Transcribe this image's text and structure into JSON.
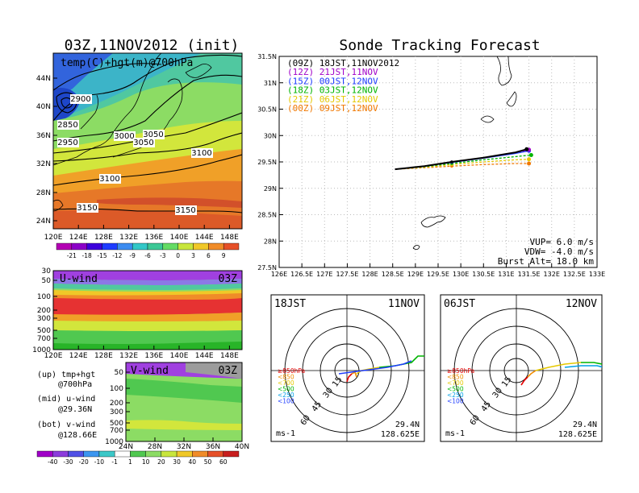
{
  "header": {
    "left_title": "03Z,11NOV2012 (init)",
    "right_title": "Sonde Tracking Forecast"
  },
  "map": {
    "label": "temp(C)+hgt(m)@700hPa",
    "contours": [
      "2850",
      "2900",
      "2950",
      "3000",
      "3050",
      "3050",
      "3100",
      "3100",
      "3150",
      "3150"
    ],
    "y_ticks": [
      "44N",
      "40N",
      "36N",
      "32N",
      "28N",
      "24N"
    ],
    "x_ticks": [
      "120E",
      "124E",
      "128E",
      "132E",
      "136E",
      "140E",
      "144E",
      "148E"
    ],
    "colorbar": [
      "-21",
      "-18",
      "-15",
      "-12",
      "-9",
      "-6",
      "-3",
      "0",
      "3",
      "6",
      "9"
    ]
  },
  "uwind": {
    "label": "U-wind",
    "time": "03Z",
    "y_ticks": [
      "30",
      "50",
      "100",
      "200",
      "300",
      "500",
      "700",
      "1000"
    ],
    "x_ticks": [
      "120E",
      "124E",
      "128E",
      "132E",
      "136E",
      "140E",
      "144E",
      "148E"
    ]
  },
  "vwind": {
    "label": "V-wind",
    "time": "03Z",
    "y_ticks": [
      "50",
      "100",
      "200",
      "300",
      "500",
      "700",
      "1000"
    ],
    "x_ticks": [
      "24N",
      "28N",
      "32N",
      "36N",
      "40N"
    ],
    "colorbar": [
      "-40",
      "-30",
      "-20",
      "-10",
      "-1",
      "1",
      "10",
      "20",
      "30",
      "40",
      "50",
      "60"
    ]
  },
  "notes": {
    "up_1": "(up) tmp+hgt",
    "up_2": "@700hPa",
    "mid_1": "(mid) u-wind",
    "mid_2": "@29.36N",
    "bot_1": "(bot) v-wind",
    "bot_2": "@128.66E"
  },
  "track": {
    "y_ticks": [
      "31.5N",
      "31N",
      "30.5N",
      "30N",
      "29.5N",
      "29N",
      "28.5N",
      "28N",
      "27.5N"
    ],
    "x_ticks": [
      "126E",
      "126.5E",
      "127E",
      "127.5E",
      "128E",
      "128.5E",
      "129E",
      "129.5E",
      "130E",
      "130.5E",
      "131E",
      "131.5E",
      "132E",
      "132.5E",
      "133E"
    ],
    "legend": [
      {
        "label": "(09Z)  18JST,11NOV2012",
        "color": "#000000"
      },
      {
        "label": "(12Z)  21JST,11NOV",
        "color": "#a000c8"
      },
      {
        "label": "(15Z)  00JST,12NOV",
        "color": "#1e3cff"
      },
      {
        "label": "(18Z)  03JST,12NOV",
        "color": "#00b400"
      },
      {
        "label": "(21Z)  06JST,12NOV",
        "color": "#e6c800"
      },
      {
        "label": "(00Z)  09JST,12NOV",
        "color": "#f07800"
      }
    ],
    "params": {
      "vup": "VUP=  6.0  m/s",
      "vdw": "VDW= -4.0  m/s",
      "burst": "Burst Alt=  18.0  km"
    }
  },
  "hodo_left": {
    "time": "18JST",
    "date": "11NOV",
    "rings": [
      "15",
      "30",
      "45",
      "60"
    ],
    "levels": [
      "≥850hPa",
      "<850",
      "<700",
      "<500",
      "<250",
      "<100"
    ],
    "unit": "ms-1",
    "lat": "29.4N",
    "lon": "128.625E"
  },
  "hodo_right": {
    "time": "06JST",
    "date": "12NOV",
    "rings": [
      "15",
      "30",
      "45",
      "60"
    ],
    "levels": [
      "≥850hPa",
      "<850",
      "<700",
      "<500",
      "<250",
      "<100"
    ],
    "unit": "ms-1",
    "lat": "29.4N",
    "lon": "128.625E"
  },
  "colors": {
    "level_colors": [
      "#e60000",
      "#f08c00",
      "#e6c800",
      "#00b400",
      "#00a0e6",
      "#1e3cff"
    ]
  },
  "chart_data": [
    {
      "type": "heatmap",
      "title": "03Z,11NOV2012 (init)",
      "label": "temp(C)+hgt(m)@700hPa",
      "xlim": [
        120,
        150
      ],
      "ylim": [
        22,
        47
      ],
      "contour_levels": [
        2850,
        2900,
        2950,
        3000,
        3050,
        3100,
        3150
      ],
      "colorbar_levels": [
        -21,
        -18,
        -15,
        -12,
        -9,
        -6,
        -3,
        0,
        3,
        6,
        9
      ]
    },
    {
      "type": "line",
      "title": "Sonde Tracking Forecast",
      "xlim": [
        126,
        133
      ],
      "ylim": [
        27.5,
        31.5
      ],
      "series": [
        {
          "name": "(09Z)  18JST,11NOV2012",
          "x": [
            128.55,
            129.2,
            129.8,
            130.5,
            131.2,
            131.45
          ],
          "y": [
            29.36,
            29.42,
            29.5,
            29.58,
            29.68,
            29.74
          ]
        },
        {
          "name": "(12Z)  21JST,11NOV",
          "x": [
            128.55,
            129.2,
            129.8,
            130.5,
            131.2,
            131.5
          ],
          "y": [
            29.36,
            29.42,
            29.5,
            29.58,
            29.68,
            29.73
          ]
        },
        {
          "name": "(15Z)  00JST,12NOV",
          "x": [
            128.55,
            129.2,
            129.8,
            130.5,
            131.2,
            131.5
          ],
          "y": [
            29.36,
            29.42,
            29.49,
            29.57,
            29.66,
            29.71
          ]
        },
        {
          "name": "(18Z)  03JST,12NOV",
          "x": [
            128.55,
            129.2,
            129.8,
            130.5,
            131.2,
            131.55
          ],
          "y": [
            29.36,
            29.41,
            29.47,
            29.54,
            29.6,
            29.63
          ]
        },
        {
          "name": "(21Z)  06JST,12NOV",
          "x": [
            128.55,
            129.2,
            129.8,
            130.5,
            131.2,
            131.5
          ],
          "y": [
            29.36,
            29.4,
            29.45,
            29.5,
            29.54,
            29.55
          ]
        },
        {
          "name": "(00Z)  09JST,12NOV",
          "x": [
            128.55,
            129.2,
            129.8,
            130.5,
            131.2,
            131.5
          ],
          "y": [
            29.36,
            29.39,
            29.42,
            29.45,
            29.47,
            29.47
          ]
        }
      ]
    }
  ]
}
